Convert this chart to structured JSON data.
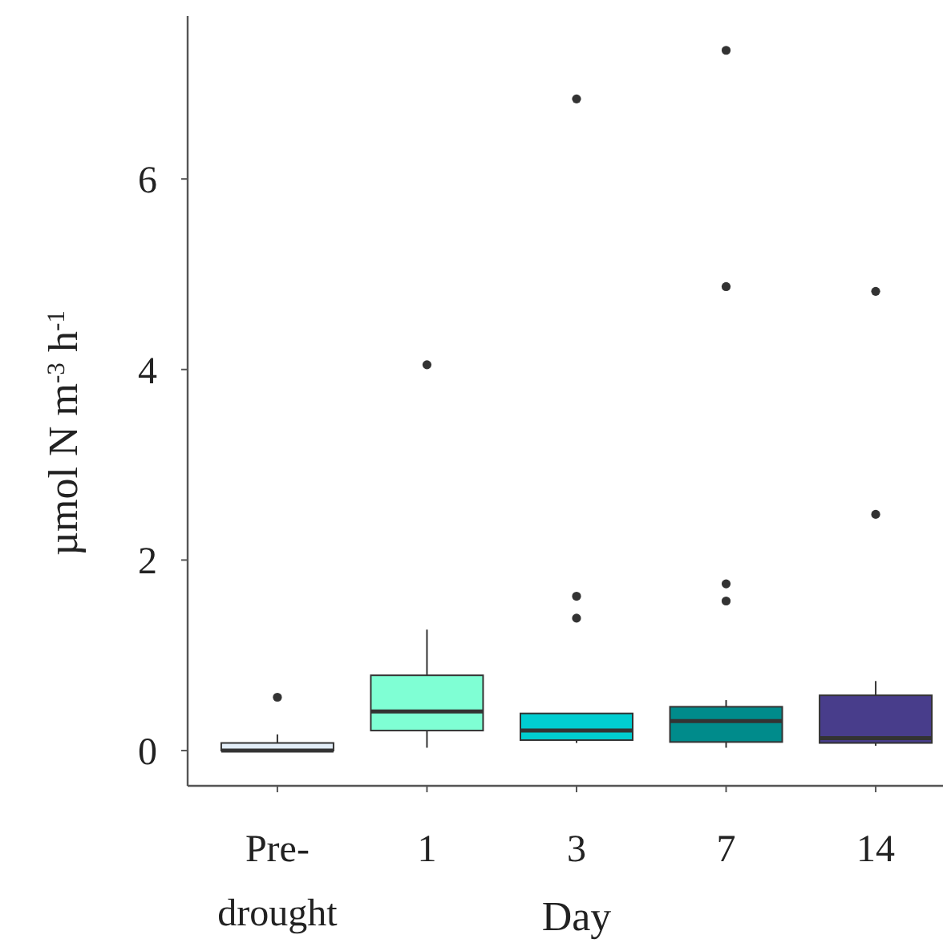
{
  "chart_data": {
    "type": "box",
    "xlabel": "Day",
    "ylabel": "µmol N m$^{-3}$ h$^{-1}$",
    "categories": [
      "Pre-drought",
      "1",
      "3",
      "7",
      "14"
    ],
    "colors": [
      "#e3eef8",
      "#7fffd4",
      "#00ced1",
      "#008b8b",
      "#483d8b"
    ],
    "boxes": [
      {
        "low": 0,
        "q1": 0,
        "median": 0,
        "q3": 0.08,
        "high": 0.17,
        "outliers": [
          0.56
        ]
      },
      {
        "low": 0.03,
        "q1": 0.21,
        "median": 0.41,
        "q3": 0.79,
        "high": 1.27,
        "outliers": [
          4.05
        ]
      },
      {
        "low": 0.08,
        "q1": 0.11,
        "median": 0.21,
        "q3": 0.39,
        "high": 0.39,
        "outliers": [
          6.84,
          1.62,
          1.39
        ]
      },
      {
        "low": 0.03,
        "q1": 0.09,
        "median": 0.31,
        "q3": 0.46,
        "high": 0.53,
        "outliers": [
          7.35,
          4.87,
          1.75,
          1.57
        ]
      },
      {
        "low": 0.05,
        "q1": 0.08,
        "median": 0.13,
        "q3": 0.58,
        "high": 0.73,
        "outliers": [
          4.82,
          2.48
        ]
      }
    ],
    "ylim": [
      -0.37,
      7.71
    ],
    "yticks": [
      0,
      2,
      4,
      6
    ],
    "grid": false
  }
}
